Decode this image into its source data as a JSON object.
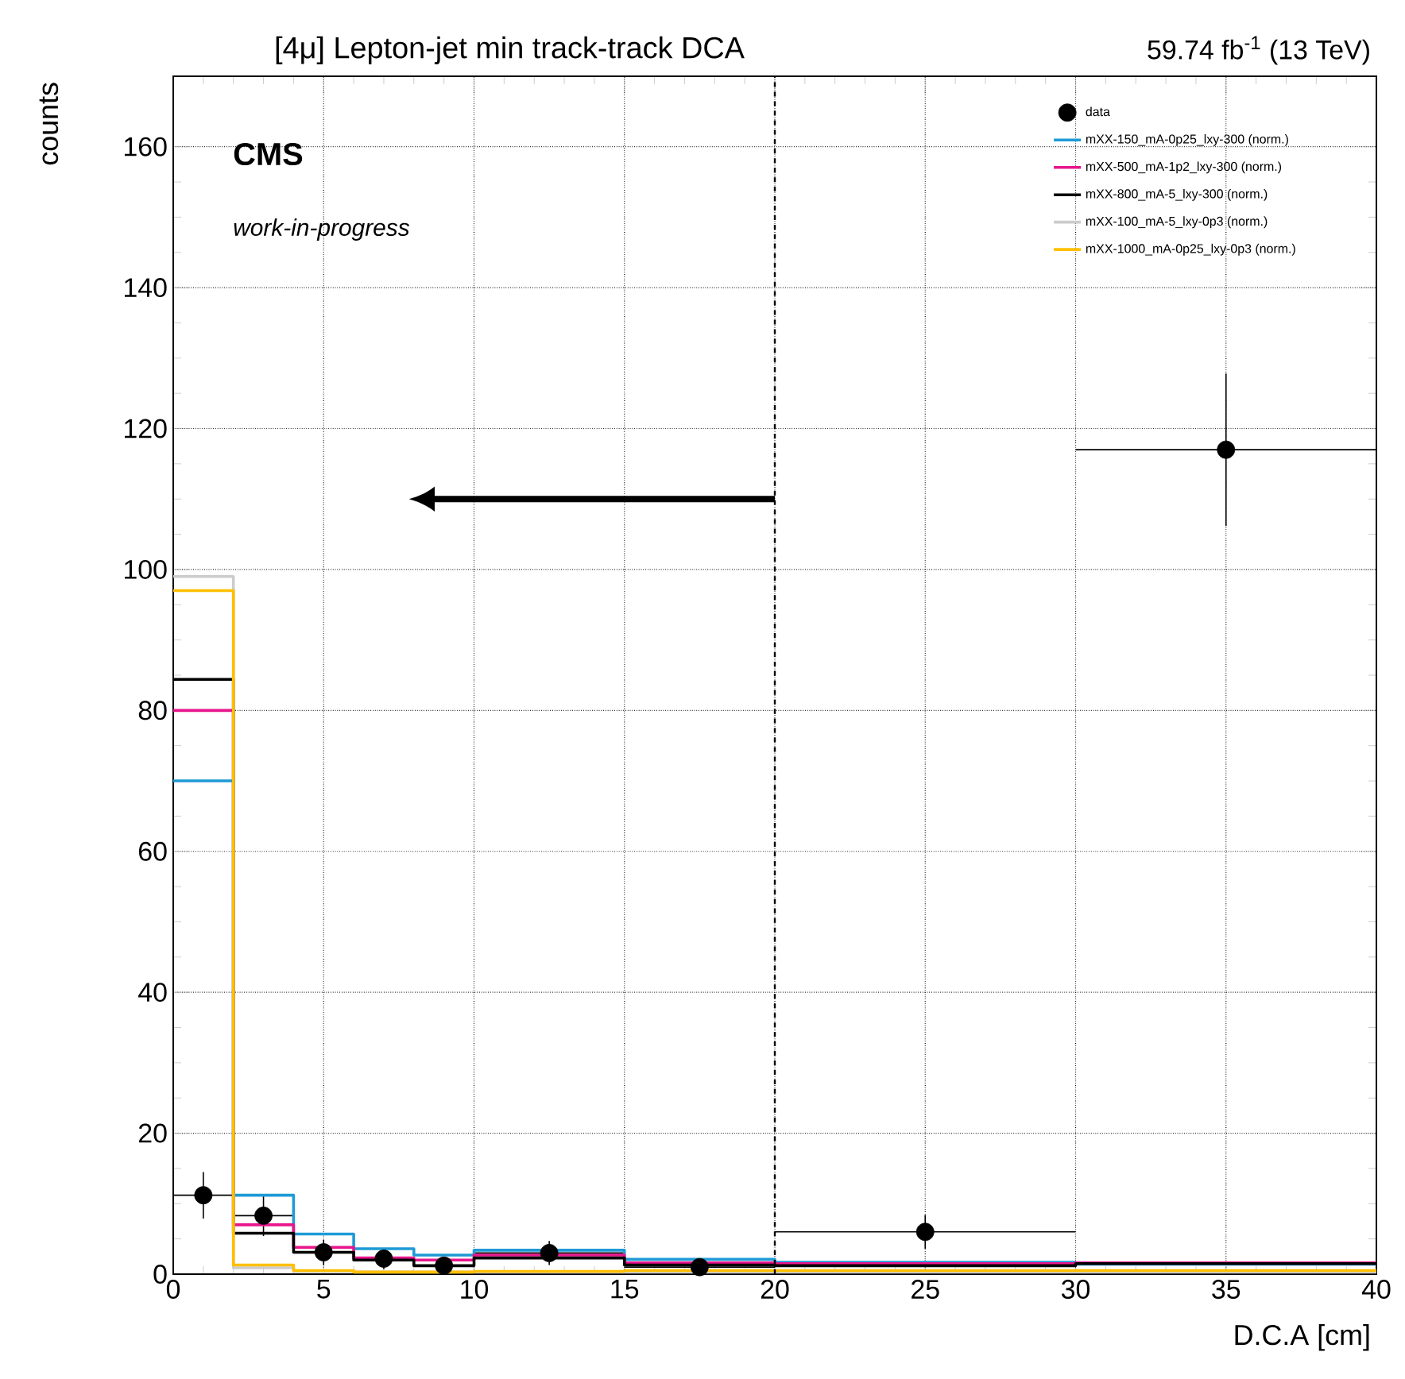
{
  "chart_data": {
    "type": "histogram",
    "title": "[4μ] Lepton-jet min track-track DCA",
    "xlabel": "D.C.A [cm]",
    "ylabel": "counts",
    "annotations": [
      "CMS",
      "work-in-progress",
      "59.74 fb$^{-1}$ (13 TeV)"
    ],
    "bins": [
      0,
      2,
      4,
      6,
      8,
      10,
      15,
      20,
      30,
      40
    ],
    "series": [
      {
        "name": "data",
        "type": "scatter",
        "color": "#000000",
        "x": [
          1,
          3,
          5,
          7,
          9,
          12.5,
          17.5,
          25,
          35
        ],
        "values": [
          11.2,
          8.3,
          3.1,
          2.2,
          1.2,
          3,
          1,
          6,
          117
        ],
        "errors": [
          3.3,
          2.9,
          1.8,
          1.5,
          1.1,
          1.7,
          1,
          2.4,
          10.8
        ],
        "xerrors": [
          1,
          1,
          1,
          1,
          1,
          2.5,
          2.5,
          5,
          5
        ]
      },
      {
        "name": "mXX-150_mA-0p25_lxy-300 (norm.)",
        "color": "#1f9ad6",
        "values": [
          70,
          11.2,
          5.7,
          3.6,
          2.7,
          3.4,
          2.1,
          1.7,
          1.4
        ]
      },
      {
        "name": "mXX-500_mA-1p2_lxy-300 (norm.)",
        "color": "#e8158c",
        "values": [
          80,
          7,
          3.8,
          2.3,
          2,
          2.7,
          1.6,
          1.5,
          1.6
        ]
      },
      {
        "name": "mXX-800_mA-5_lxy-300 (norm.)",
        "color": "#000000",
        "values": [
          84.4,
          5.8,
          3.1,
          2,
          1.2,
          2.3,
          1.3,
          1.2,
          1.5
        ]
      },
      {
        "name": "mXX-100_mA-5_lxy-0p3 (norm.)",
        "color": "#cccccc",
        "values": [
          99,
          0.9,
          0.4,
          0.3,
          0.3,
          0.3,
          0.3,
          0.3,
          0.3
        ]
      },
      {
        "name": "mXX-1000_mA-0p25_lxy-0p3 (norm.)",
        "color": "#ffbf00",
        "values": [
          97,
          1.3,
          0.5,
          0.3,
          0.3,
          0.4,
          0.5,
          0.5,
          0.5
        ]
      }
    ],
    "xlim": [
      0,
      40
    ],
    "ylim": [
      0,
      170
    ],
    "xticks": [
      0,
      5,
      10,
      15,
      20,
      25,
      30,
      35,
      40
    ],
    "yticks": [
      0,
      20,
      40,
      60,
      80,
      100,
      120,
      140,
      160
    ],
    "ref_lines": [
      {
        "axis": "x",
        "value": 20,
        "color": "#000000",
        "line_style": "dashed"
      }
    ],
    "grid": true,
    "legend": "top right"
  }
}
